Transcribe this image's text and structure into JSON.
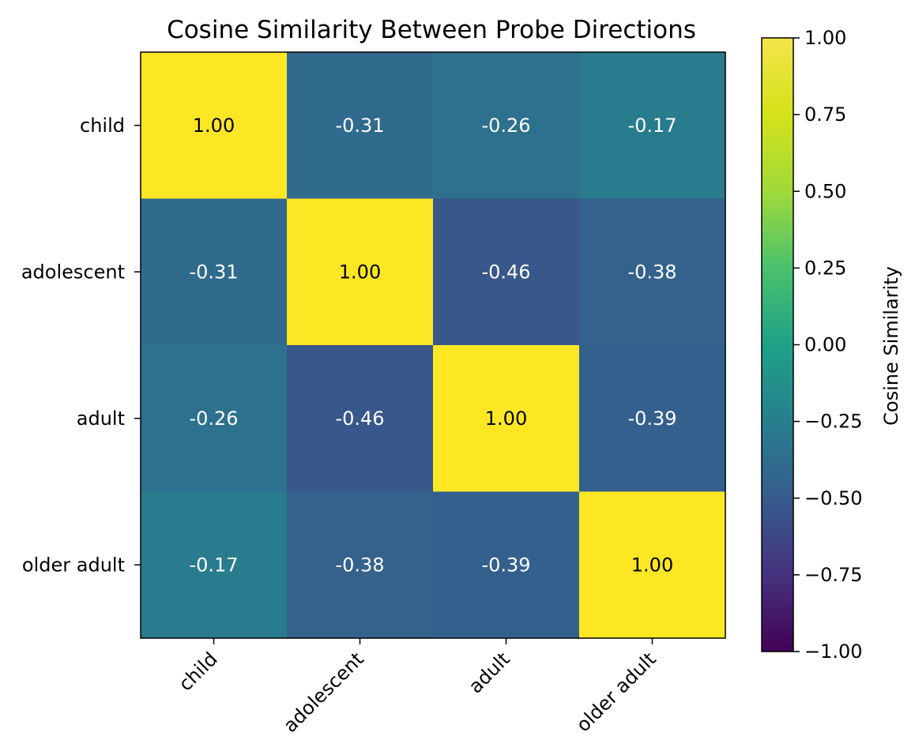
{
  "chart_data": {
    "type": "heatmap",
    "title": "Cosine Similarity Between Probe Directions",
    "rows": [
      "child",
      "adolescent",
      "adult",
      "older adult"
    ],
    "cols": [
      "child",
      "adolescent",
      "adult",
      "older adult"
    ],
    "values": [
      [
        1.0,
        -0.31,
        -0.26,
        -0.17
      ],
      [
        -0.31,
        1.0,
        -0.46,
        -0.38
      ],
      [
        -0.26,
        -0.46,
        1.0,
        -0.39
      ],
      [
        -0.17,
        -0.38,
        -0.39,
        1.0
      ]
    ],
    "cell_labels": [
      [
        "1.00",
        "-0.31",
        "-0.26",
        "-0.17"
      ],
      [
        "-0.31",
        "1.00",
        "-0.46",
        "-0.38"
      ],
      [
        "-0.26",
        "-0.46",
        "1.00",
        "-0.39"
      ],
      [
        "-0.17",
        "-0.38",
        "-0.39",
        "1.00"
      ]
    ],
    "colormap": "viridis",
    "vmin": -1.0,
    "vmax": 1.0,
    "colorbar": {
      "label": "Cosine Similarity",
      "ticks": [
        1.0,
        0.75,
        0.5,
        0.25,
        0.0,
        -0.25,
        -0.5,
        -0.75,
        -1.0
      ],
      "tick_labels": [
        "1.00",
        "0.75",
        "0.50",
        "0.25",
        "0.00",
        "−0.25",
        "−0.50",
        "−0.75",
        "−1.00"
      ]
    }
  }
}
